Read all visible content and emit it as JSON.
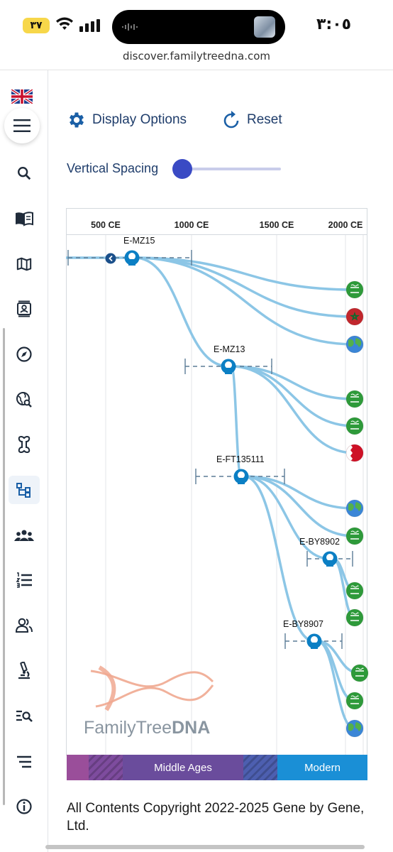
{
  "status_bar": {
    "battery": "٣٧",
    "time": "٣:٠٥"
  },
  "browser": {
    "url": "discover.familytreedna.com"
  },
  "sidebar": {
    "language_flag": "uk-flag",
    "items": [
      {
        "name": "menu",
        "icon": "hamburger-icon"
      },
      {
        "name": "search",
        "icon": "search-icon"
      },
      {
        "name": "book",
        "icon": "book-icon"
      },
      {
        "name": "map",
        "icon": "map-icon"
      },
      {
        "name": "contacts",
        "icon": "contact-card-icon"
      },
      {
        "name": "explore",
        "icon": "compass-icon"
      },
      {
        "name": "globe-search",
        "icon": "globe-search-icon"
      },
      {
        "name": "bone",
        "icon": "bone-icon"
      },
      {
        "name": "tree",
        "icon": "tree-structure-icon",
        "active": true
      },
      {
        "name": "groups",
        "icon": "groups-icon"
      },
      {
        "name": "numbered-list",
        "icon": "numbered-list-icon"
      },
      {
        "name": "people",
        "icon": "people-icon"
      },
      {
        "name": "microscope",
        "icon": "microscope-icon"
      },
      {
        "name": "list-search",
        "icon": "list-search-icon"
      },
      {
        "name": "sort",
        "icon": "sort-lines-icon"
      },
      {
        "name": "info",
        "icon": "info-icon"
      }
    ]
  },
  "controls": {
    "display_options": "Display Options",
    "reset": "Reset",
    "vertical_spacing": "Vertical Spacing",
    "vertical_spacing_value": 0
  },
  "timeline": {
    "ticks": [
      "500 CE",
      "1000 CE",
      "1500 CE",
      "2000 CE"
    ],
    "eras": [
      {
        "label": "",
        "color": "#9a4e9a"
      },
      {
        "label": "",
        "color": "#7e4c9e",
        "hatched": true
      },
      {
        "label": "Middle Ages",
        "color": "#6a4c9c"
      },
      {
        "label": "",
        "color": "#4d5fb0",
        "hatched": true
      },
      {
        "label": "Modern",
        "color": "#1a8fd6"
      }
    ]
  },
  "tree": {
    "nodes": [
      {
        "id": "E-MZ15"
      },
      {
        "id": "E-MZ13"
      },
      {
        "id": "E-FT135111"
      },
      {
        "id": "E-BY8902"
      },
      {
        "id": "E-BY8907"
      }
    ],
    "leaves": [
      {
        "flag": "saudi-arabia"
      },
      {
        "flag": "morocco"
      },
      {
        "flag": "globe"
      },
      {
        "flag": "saudi-arabia"
      },
      {
        "flag": "saudi-arabia"
      },
      {
        "flag": "bahrain"
      },
      {
        "flag": "globe"
      },
      {
        "flag": "saudi-arabia"
      },
      {
        "flag": "saudi-arabia"
      },
      {
        "flag": "saudi-arabia"
      },
      {
        "flag": "saudi-arabia"
      },
      {
        "flag": "saudi-arabia"
      },
      {
        "flag": "globe"
      }
    ],
    "colors": {
      "branch": "#8cc6e6",
      "node": "#0b7fc4",
      "dash": "#5b7c96"
    }
  },
  "watermark": {
    "brand_regular": "FamilyTree",
    "brand_bold": "DNA"
  },
  "footer": {
    "copyright": "All Contents Copyright 2022-2025 Gene by Gene, Ltd."
  }
}
